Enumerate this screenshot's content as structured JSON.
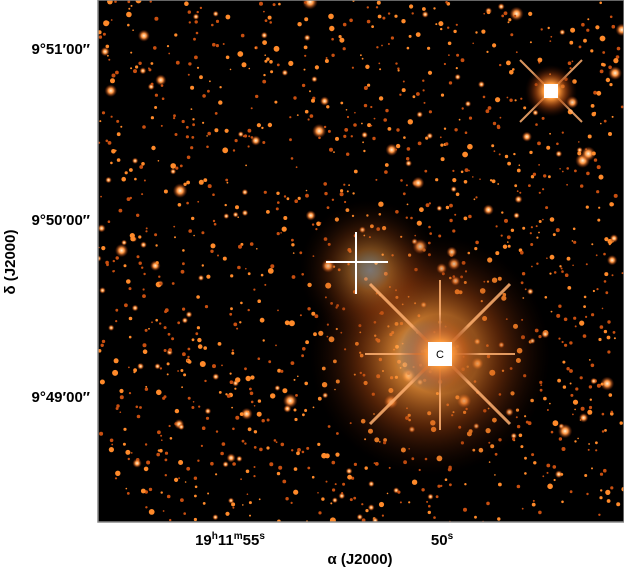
{
  "y_axis": {
    "label": "δ (J2000)",
    "ticks": [
      "9°51′00″",
      "9°50′00″",
      "9°49′00″"
    ]
  },
  "x_axis": {
    "label": "α (J2000)",
    "ticks": [
      {
        "parts": [
          "19",
          "h",
          "11",
          "m",
          "55",
          "s"
        ]
      },
      {
        "parts": [
          "50",
          "s"
        ]
      }
    ]
  },
  "image": {
    "marker": "C"
  }
}
